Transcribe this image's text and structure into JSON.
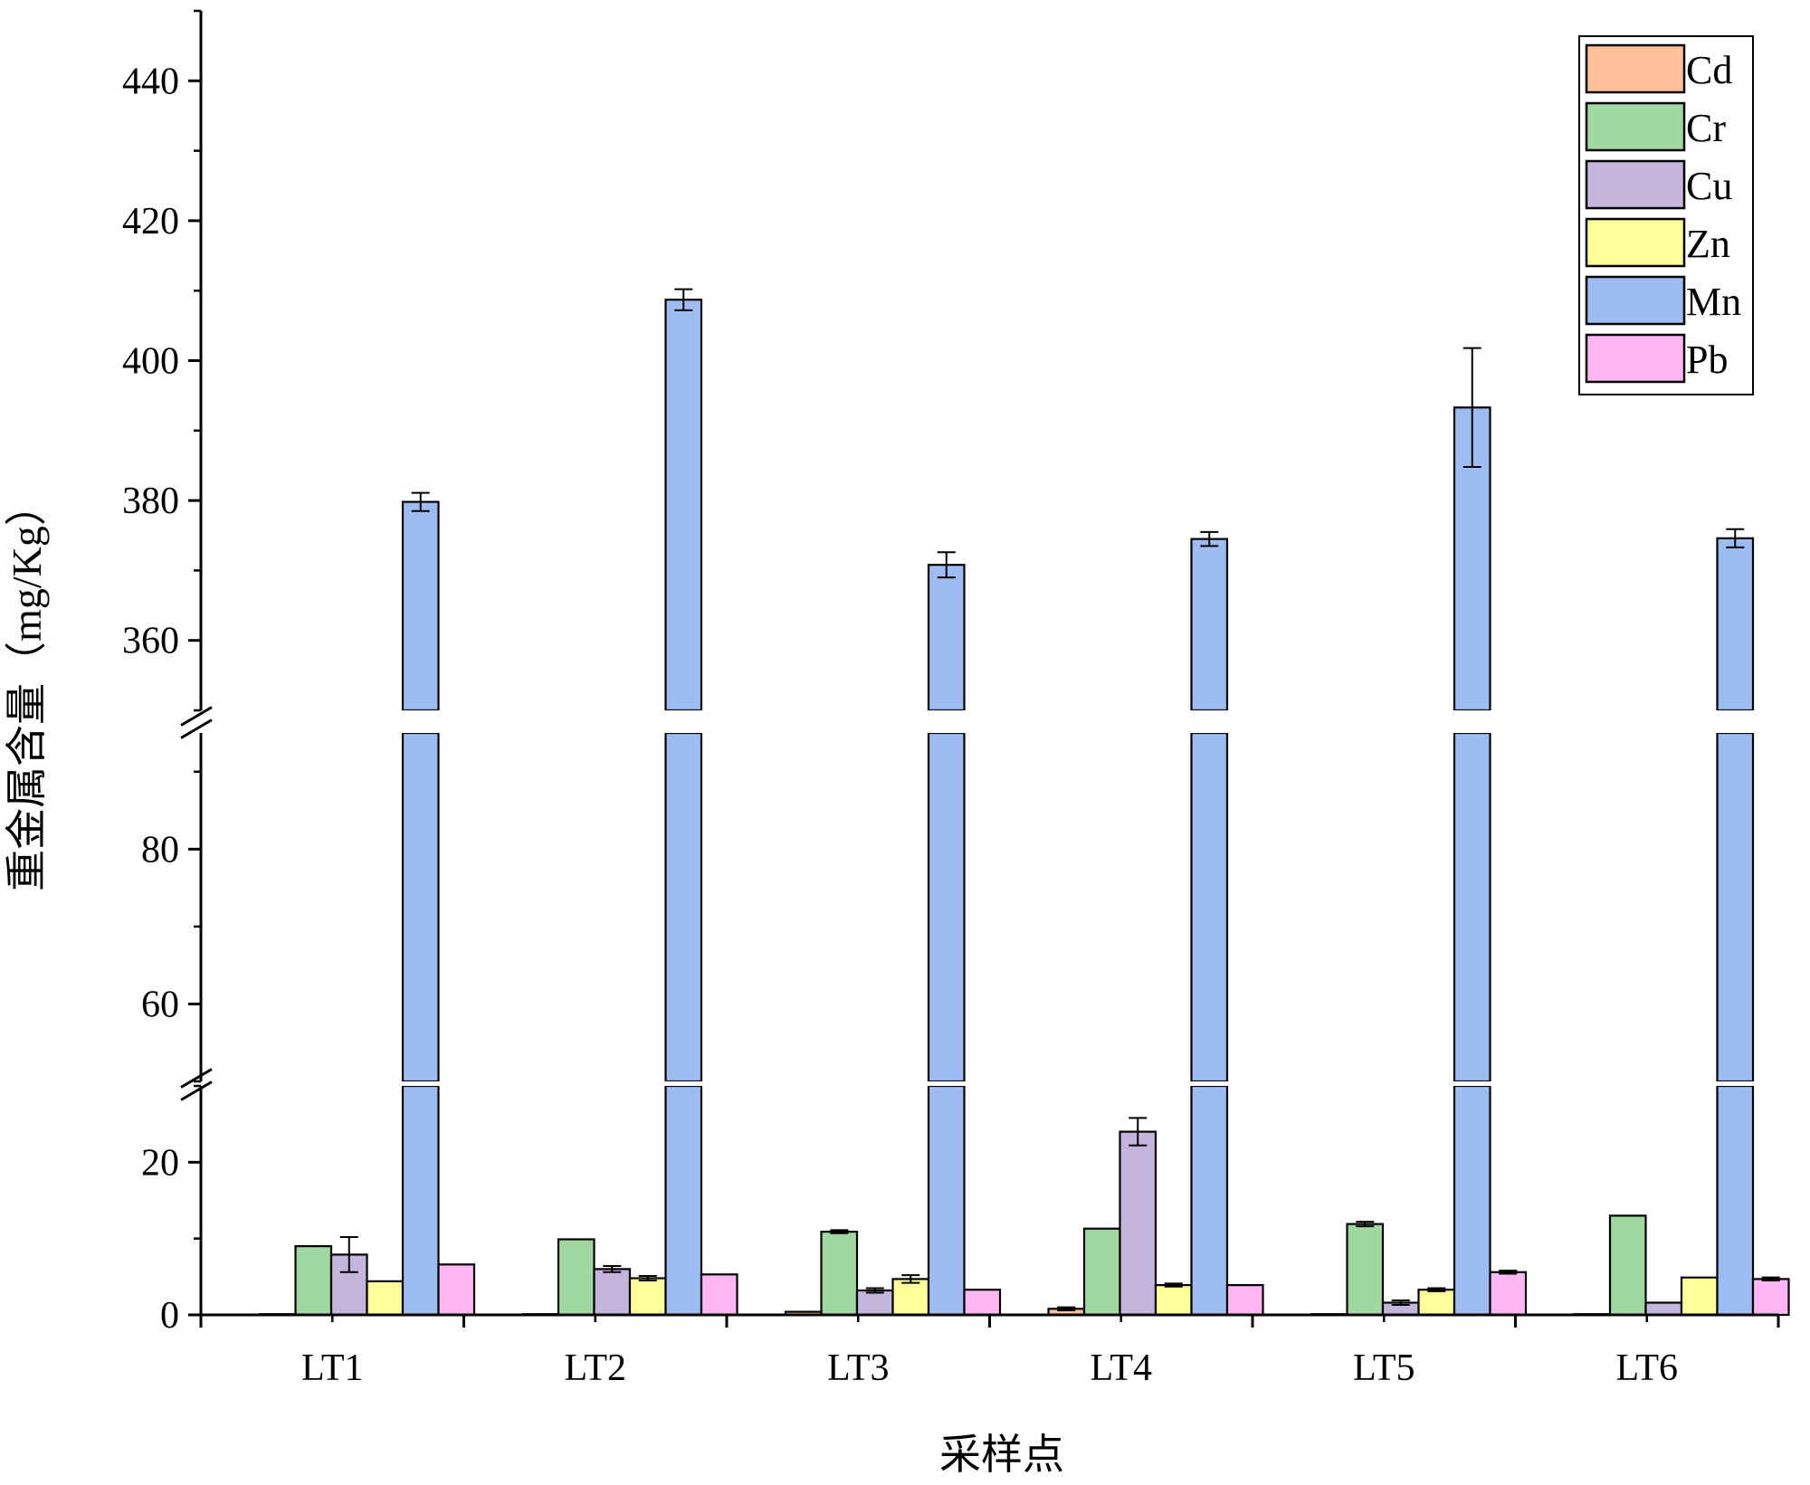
{
  "chart_data": {
    "type": "bar",
    "title": "",
    "xlabel": "采样点",
    "ylabel": "重金属含量（mg/Kg）",
    "categories": [
      "LT1",
      "LT2",
      "LT3",
      "LT4",
      "LT5",
      "LT6"
    ],
    "axis_breaks": [
      [
        30,
        50
      ],
      [
        95,
        350
      ]
    ],
    "ylim": [
      0,
      450
    ],
    "y_ticks": [
      0,
      20,
      60,
      80,
      360,
      380,
      400,
      420,
      440
    ],
    "legend_position": "top-right",
    "grid": false,
    "series": [
      {
        "name": "Cd",
        "color": "#FFC09A",
        "values": [
          0.1,
          0.1,
          0.4,
          0.8,
          0.1,
          0.1
        ],
        "errors": [
          0,
          0,
          0,
          0.2,
          0,
          0
        ]
      },
      {
        "name": "Cr",
        "color": "#A0D8A0",
        "values": [
          9.0,
          9.9,
          10.9,
          11.3,
          11.9,
          13.0
        ],
        "errors": [
          0,
          0,
          0.2,
          0,
          0.3,
          0
        ]
      },
      {
        "name": "Cu",
        "color": "#C3B5DC",
        "values": [
          7.9,
          6.0,
          3.2,
          24.0,
          1.6,
          1.6
        ],
        "errors": [
          2.3,
          0.4,
          0.3,
          1.8,
          0.3,
          0
        ]
      },
      {
        "name": "Zn",
        "color": "#FFFF99",
        "values": [
          4.4,
          4.8,
          4.7,
          3.9,
          3.3,
          4.9
        ],
        "errors": [
          0,
          0.3,
          0.5,
          0.2,
          0.2,
          0
        ]
      },
      {
        "name": "Mn",
        "color": "#9DBCF2",
        "values": [
          379.8,
          408.7,
          370.8,
          374.5,
          393.3,
          374.6
        ],
        "errors": [
          1.3,
          1.5,
          1.8,
          1.0,
          8.5,
          1.3
        ]
      },
      {
        "name": "Pb",
        "color": "#FFB6F5",
        "values": [
          6.6,
          5.3,
          3.3,
          3.9,
          5.6,
          4.7
        ],
        "errors": [
          0,
          0,
          0,
          0,
          0.2,
          0.2
        ]
      }
    ]
  }
}
